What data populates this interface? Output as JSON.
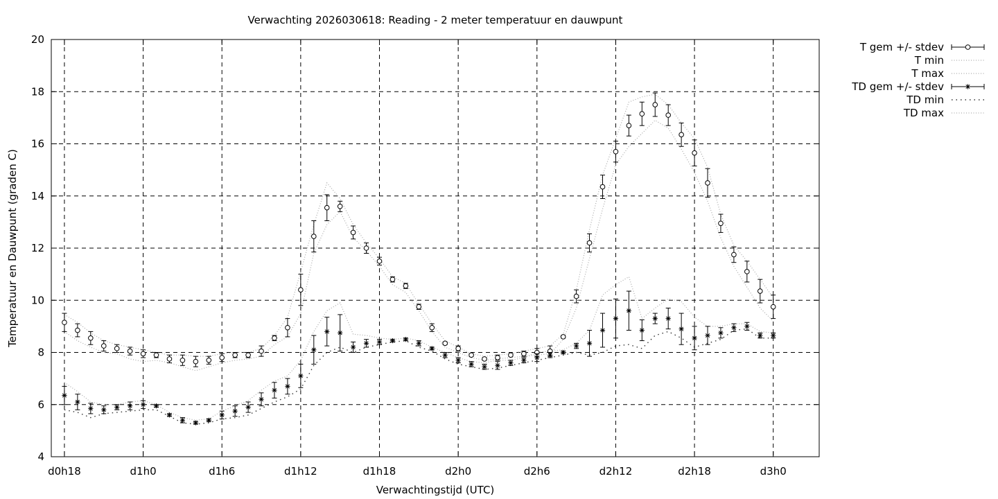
{
  "chart_data": {
    "type": "line",
    "title": "Verwachting 2026030618: Reading - 2 meter temperatuur en dauwpunt",
    "xlabel": "Verwachtingstijd (UTC)",
    "ylabel": "Temperatuur en Dauwpunt (graden C)",
    "xlim": [
      17,
      75.5
    ],
    "ylim": [
      4,
      20
    ],
    "yticks": [
      4,
      6,
      8,
      10,
      12,
      14,
      16,
      18,
      20
    ],
    "xticks": [
      {
        "value": 18,
        "label": "d0h18"
      },
      {
        "value": 24,
        "label": "d1h0"
      },
      {
        "value": 30,
        "label": "d1h6"
      },
      {
        "value": 36,
        "label": "d1h12"
      },
      {
        "value": 42,
        "label": "d1h18"
      },
      {
        "value": 48,
        "label": "d2h0"
      },
      {
        "value": 54,
        "label": "d2h6"
      },
      {
        "value": 60,
        "label": "d2h12"
      },
      {
        "value": 66,
        "label": "d2h18"
      },
      {
        "value": 72,
        "label": "d3h0"
      }
    ],
    "grid": true,
    "legend_position": "outside-right",
    "x": [
      18,
      19,
      20,
      21,
      22,
      23,
      24,
      25,
      26,
      27,
      28,
      29,
      30,
      31,
      32,
      33,
      34,
      35,
      36,
      37,
      38,
      39,
      40,
      41,
      42,
      43,
      44,
      45,
      46,
      47,
      48,
      49,
      50,
      51,
      52,
      53,
      54,
      55,
      56,
      57,
      58,
      59,
      60,
      61,
      62,
      63,
      64,
      65,
      66,
      67,
      68,
      69,
      70,
      71,
      72
    ],
    "series": [
      {
        "name": "T gem +/- stdev",
        "marker": "circle",
        "mean": [
          9.15,
          8.85,
          8.55,
          8.25,
          8.15,
          8.05,
          7.95,
          7.9,
          7.75,
          7.7,
          7.65,
          7.7,
          7.8,
          7.9,
          7.9,
          8.05,
          8.55,
          8.95,
          10.4,
          12.45,
          13.55,
          13.6,
          12.6,
          12.0,
          11.5,
          10.8,
          10.55,
          9.75,
          8.95,
          8.35,
          8.15,
          7.9,
          7.75,
          7.8,
          7.9,
          7.95,
          8.0,
          8.05,
          8.6,
          10.15,
          12.2,
          14.35,
          15.7,
          16.7,
          17.15,
          17.5,
          17.1,
          16.35,
          15.65,
          14.5,
          12.95,
          11.75,
          11.1,
          10.35,
          9.75
        ],
        "stdev": [
          0.35,
          0.25,
          0.25,
          0.2,
          0.15,
          0.15,
          0.15,
          0.1,
          0.15,
          0.2,
          0.2,
          0.15,
          0.15,
          0.1,
          0.1,
          0.2,
          0.1,
          0.35,
          0.6,
          0.6,
          0.5,
          0.2,
          0.25,
          0.2,
          0.15,
          0.1,
          0.1,
          0.1,
          0.15,
          0.05,
          0.1,
          0.05,
          0.05,
          0.1,
          0.05,
          0.1,
          0.15,
          0.2,
          0.05,
          0.25,
          0.35,
          0.45,
          0.4,
          0.4,
          0.45,
          0.45,
          0.4,
          0.45,
          0.5,
          0.55,
          0.35,
          0.3,
          0.4,
          0.45,
          0.45
        ]
      },
      {
        "name": "T min",
        "line": "dotted-light",
        "values": [
          8.8,
          8.45,
          8.2,
          8.0,
          7.95,
          7.75,
          7.65,
          7.7,
          7.6,
          7.45,
          7.3,
          7.45,
          7.6,
          7.7,
          7.75,
          7.85,
          8.3,
          8.6,
          9.5,
          11.8,
          12.9,
          13.4,
          12.4,
          11.9,
          11.3,
          10.6,
          10.3,
          9.6,
          8.8,
          8.2,
          8.0,
          7.8,
          7.7,
          7.75,
          7.8,
          7.85,
          7.9,
          7.95,
          8.5,
          9.7,
          11.6,
          13.5,
          15.2,
          15.9,
          16.4,
          16.9,
          16.6,
          15.8,
          14.9,
          13.8,
          12.4,
          11.3,
          10.5,
          9.7,
          9.2
        ]
      },
      {
        "name": "T max",
        "line": "dotted-light",
        "values": [
          9.45,
          9.15,
          8.75,
          8.45,
          8.3,
          8.2,
          8.1,
          8.0,
          7.9,
          7.9,
          7.85,
          7.85,
          7.95,
          8.0,
          8.0,
          8.15,
          8.65,
          9.35,
          11.1,
          12.9,
          14.5,
          13.9,
          12.9,
          12.2,
          11.6,
          10.9,
          10.65,
          9.85,
          9.1,
          8.45,
          8.2,
          7.95,
          7.85,
          7.9,
          7.95,
          8.05,
          8.15,
          8.25,
          8.7,
          10.4,
          12.7,
          14.8,
          16.2,
          17.6,
          17.8,
          17.9,
          17.5,
          16.8,
          16.2,
          15.1,
          13.3,
          12.1,
          11.5,
          10.8,
          10.1
        ]
      },
      {
        "name": "TD gem +/- stdev",
        "marker": "star",
        "mean": [
          6.35,
          6.1,
          5.85,
          5.8,
          5.9,
          5.95,
          6.0,
          5.95,
          5.6,
          5.4,
          5.3,
          5.4,
          5.6,
          5.75,
          5.9,
          6.2,
          6.55,
          6.7,
          7.1,
          8.1,
          8.8,
          8.75,
          8.2,
          8.35,
          8.4,
          8.45,
          8.5,
          8.35,
          8.15,
          7.9,
          7.7,
          7.55,
          7.45,
          7.5,
          7.6,
          7.7,
          7.8,
          7.9,
          8.0,
          8.25,
          8.35,
          8.85,
          9.3,
          9.6,
          8.85,
          9.3,
          9.3,
          8.9,
          8.55,
          8.65,
          8.75,
          8.95,
          9.0,
          8.65,
          8.65
        ],
        "stdev": [
          0.35,
          0.3,
          0.2,
          0.15,
          0.1,
          0.15,
          0.15,
          0.05,
          0.05,
          0.1,
          0.05,
          0.05,
          0.15,
          0.2,
          0.2,
          0.25,
          0.3,
          0.3,
          0.45,
          0.55,
          0.55,
          0.7,
          0.2,
          0.15,
          0.1,
          0.05,
          0.05,
          0.1,
          0.05,
          0.1,
          0.1,
          0.1,
          0.1,
          0.15,
          0.1,
          0.1,
          0.15,
          0.1,
          0.05,
          0.1,
          0.5,
          0.65,
          0.75,
          0.75,
          0.4,
          0.2,
          0.4,
          0.6,
          0.45,
          0.35,
          0.2,
          0.15,
          0.15,
          0.1,
          0.1
        ]
      },
      {
        "name": "TD min",
        "line": "dotted-dark",
        "values": [
          5.8,
          5.7,
          5.5,
          5.65,
          5.7,
          5.75,
          5.8,
          5.8,
          5.55,
          5.3,
          5.25,
          5.3,
          5.45,
          5.5,
          5.6,
          5.85,
          6.1,
          6.3,
          6.6,
          7.5,
          8.0,
          8.2,
          8.0,
          8.2,
          8.3,
          8.4,
          8.45,
          8.2,
          8.05,
          7.75,
          7.55,
          7.45,
          7.35,
          7.4,
          7.5,
          7.6,
          7.7,
          7.8,
          7.9,
          8.0,
          7.9,
          8.0,
          8.25,
          8.3,
          8.15,
          8.65,
          8.8,
          8.55,
          8.2,
          8.35,
          8.5,
          8.85,
          8.9,
          8.55,
          8.55
        ]
      },
      {
        "name": "TD max",
        "line": "dotted-light",
        "values": [
          6.85,
          6.5,
          6.1,
          6.0,
          6.0,
          6.1,
          6.15,
          6.0,
          5.7,
          5.5,
          5.4,
          5.45,
          5.75,
          5.95,
          6.15,
          6.55,
          6.9,
          7.1,
          7.7,
          8.8,
          9.6,
          9.9,
          8.7,
          8.65,
          8.55,
          8.5,
          8.55,
          8.45,
          8.2,
          8.0,
          7.8,
          7.65,
          7.6,
          7.7,
          7.7,
          7.8,
          8.0,
          8.05,
          8.1,
          8.35,
          8.85,
          10.2,
          10.6,
          10.9,
          9.3,
          9.7,
          10.05,
          9.95,
          9.35,
          9.0,
          9.0,
          9.1,
          9.1,
          8.8,
          8.75
        ]
      }
    ]
  }
}
